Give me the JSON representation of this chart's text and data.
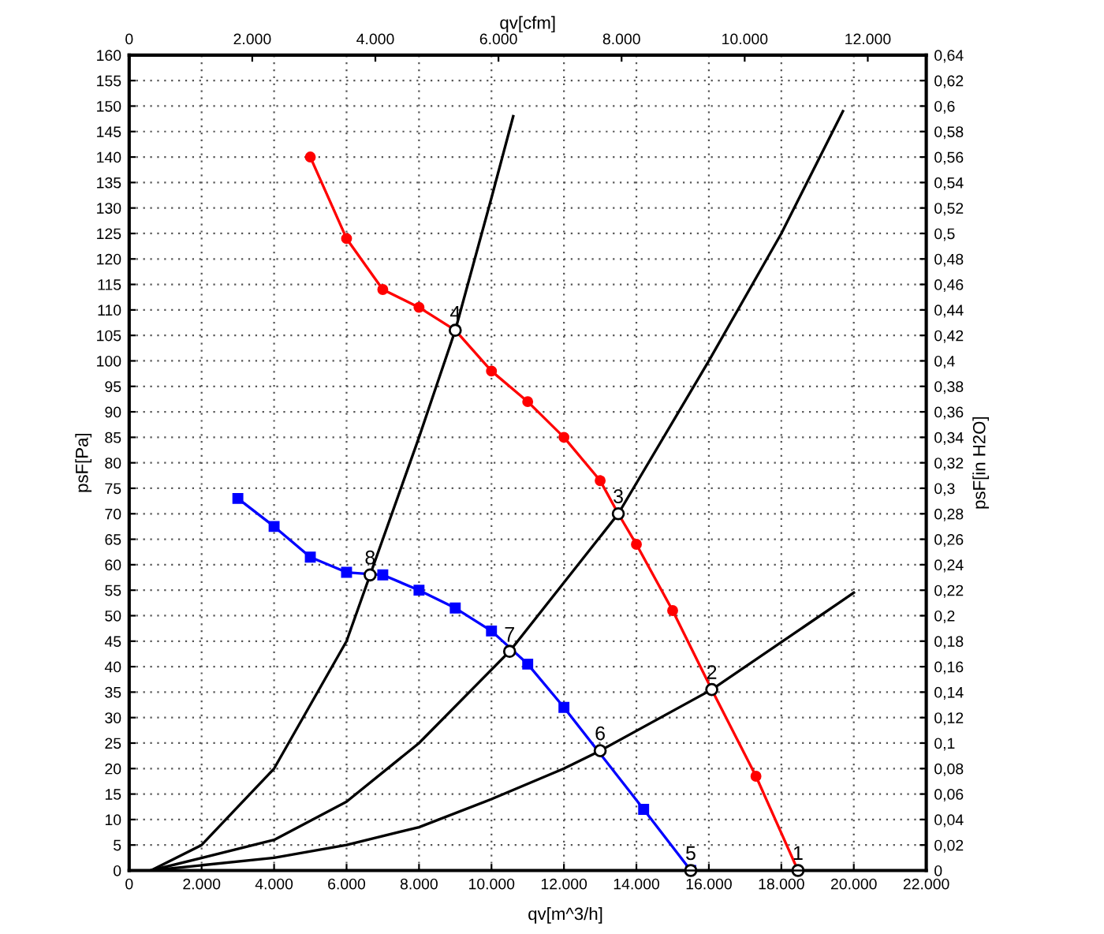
{
  "chart_data": {
    "type": "line",
    "xlabel": "qv[m^3/h]",
    "ylabel": "psF[Pa]",
    "y2label": "psF[in H2O]",
    "x2label": "qv[cfm]",
    "xlim": [
      0,
      22000
    ],
    "xticks": [
      0,
      {
        "value": 2000,
        "label": "2.000"
      },
      {
        "value": 4000,
        "label": "4.000"
      },
      {
        "value": 6000,
        "label": "6.000"
      },
      {
        "value": 8000,
        "label": "8.000"
      },
      {
        "value": 10000,
        "label": "10.000"
      },
      {
        "value": 12000,
        "label": "12.000"
      },
      {
        "value": 14000,
        "label": "14.000"
      },
      {
        "value": 16000,
        "label": "16.000"
      },
      {
        "value": 18000,
        "label": "18.000"
      },
      {
        "value": 20000,
        "label": "20.000"
      },
      {
        "value": 22000,
        "label": "22.000"
      }
    ],
    "x2lim": [
      0,
      12950
    ],
    "x2ticks": [
      0,
      {
        "value": 2000,
        "label": "2.000"
      },
      {
        "value": 4000,
        "label": "4.000"
      },
      {
        "value": 6000,
        "label": "6.000"
      },
      {
        "value": 8000,
        "label": "8.000"
      },
      {
        "value": 10000,
        "label": "10.000"
      },
      {
        "value": 12000,
        "label": "12.000"
      }
    ],
    "ylim": [
      0,
      160
    ],
    "yticks": [
      0,
      5,
      10,
      15,
      20,
      25,
      30,
      35,
      40,
      45,
      50,
      55,
      60,
      65,
      70,
      75,
      80,
      85,
      90,
      95,
      100,
      105,
      110,
      115,
      120,
      125,
      130,
      135,
      140,
      145,
      150,
      155,
      160
    ],
    "y2lim": [
      0,
      0.64
    ],
    "y2ticks": [
      0,
      {
        "value": 0.02,
        "label": "0,02"
      },
      {
        "value": 0.04,
        "label": "0,04"
      },
      {
        "value": 0.06,
        "label": "0,06"
      },
      {
        "value": 0.08,
        "label": "0,08"
      },
      {
        "value": 0.1,
        "label": "0,1"
      },
      {
        "value": 0.12,
        "label": "0,12"
      },
      {
        "value": 0.14,
        "label": "0,14"
      },
      {
        "value": 0.16,
        "label": "0,16"
      },
      {
        "value": 0.18,
        "label": "0,18"
      },
      {
        "value": 0.2,
        "label": "0,2"
      },
      {
        "value": 0.22,
        "label": "0,22"
      },
      {
        "value": 0.24,
        "label": "0,24"
      },
      {
        "value": 0.26,
        "label": "0,26"
      },
      {
        "value": 0.28,
        "label": "0,28"
      },
      {
        "value": 0.3,
        "label": "0,3"
      },
      {
        "value": 0.32,
        "label": "0,32"
      },
      {
        "value": 0.34,
        "label": "0,34"
      },
      {
        "value": 0.36,
        "label": "0,36"
      },
      {
        "value": 0.38,
        "label": "0,38"
      },
      {
        "value": 0.4,
        "label": "0,4"
      },
      {
        "value": 0.42,
        "label": "0,42"
      },
      {
        "value": 0.44,
        "label": "0,44"
      },
      {
        "value": 0.46,
        "label": "0,46"
      },
      {
        "value": 0.48,
        "label": "0,48"
      },
      {
        "value": 0.5,
        "label": "0,5"
      },
      {
        "value": 0.52,
        "label": "0,52"
      },
      {
        "value": 0.54,
        "label": "0,54"
      },
      {
        "value": 0.56,
        "label": "0,56"
      },
      {
        "value": 0.58,
        "label": "0,58"
      },
      {
        "value": 0.6,
        "label": "0,6"
      },
      {
        "value": 0.62,
        "label": "0,62"
      },
      {
        "value": 0.64,
        "label": "0,64"
      }
    ],
    "grid": true,
    "line_style": "solid",
    "series": [
      {
        "color": "#ff0000",
        "marker": "circle",
        "x": [
          5000,
          6000,
          7000,
          8000,
          9000,
          10000,
          11000,
          12000,
          13000,
          13500,
          14000,
          15000,
          16080,
          17300,
          18460
        ],
        "values": [
          140,
          124,
          114,
          110.5,
          106,
          98,
          92,
          85,
          76.5,
          70,
          64,
          51,
          35.5,
          18.5,
          0
        ]
      },
      {
        "color": "#0000ff",
        "marker": "square",
        "x": [
          3000,
          4000,
          5000,
          6000,
          7000,
          8000,
          9000,
          10000,
          11000,
          12000,
          14200,
          15500
        ],
        "values": [
          73,
          67.5,
          61.5,
          58.5,
          58,
          55,
          51.5,
          47,
          40.5,
          32,
          12,
          0
        ]
      },
      {
        "color": "#000000",
        "marker": "none",
        "x": [
          600,
          2000,
          4000,
          6000,
          6650,
          8000,
          9000,
          10000,
          10600
        ],
        "values": [
          0,
          5,
          20,
          45,
          58,
          85,
          106,
          132,
          148
        ]
      },
      {
        "color": "#000000",
        "marker": "none",
        "x": [
          600,
          4000,
          6000,
          8000,
          10500,
          13500,
          16000,
          18000,
          19700
        ],
        "values": [
          0,
          6,
          13.5,
          25,
          43,
          70,
          100,
          125,
          149
        ]
      },
      {
        "color": "#000000",
        "marker": "none",
        "x": [
          600,
          4000,
          6000,
          8000,
          10000,
          12000,
          13000,
          16080,
          20000
        ],
        "values": [
          0,
          2.5,
          5,
          8.5,
          14,
          20,
          23.5,
          35.5,
          54.5
        ]
      }
    ],
    "annotations": [
      {
        "text": "1",
        "x": 18460,
        "y": 0
      },
      {
        "text": "2",
        "x": 16080,
        "y": 35.5
      },
      {
        "text": "3",
        "x": 13500,
        "y": 70
      },
      {
        "text": "4",
        "x": 9000,
        "y": 106
      },
      {
        "text": "5",
        "x": 15500,
        "y": 0
      },
      {
        "text": "6",
        "x": 13000,
        "y": 23.5
      },
      {
        "text": "7",
        "x": 10500,
        "y": 43
      },
      {
        "text": "8",
        "x": 6650,
        "y": 58
      }
    ]
  }
}
